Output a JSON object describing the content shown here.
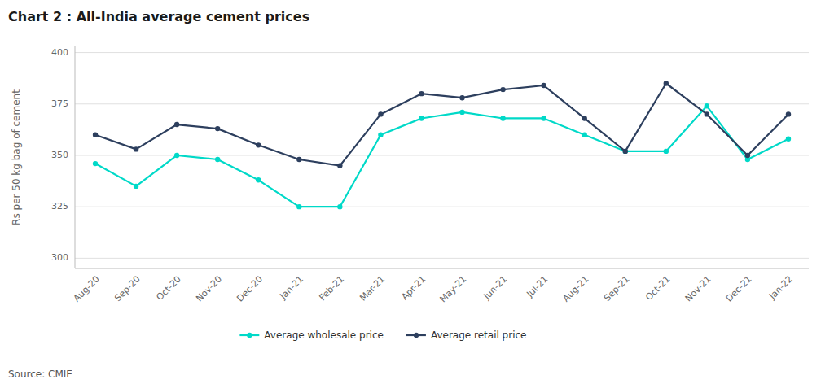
{
  "chart_data": {
    "type": "line",
    "title": "Chart 2 : All-India average cement prices",
    "source": "Source: CMIE",
    "ylabel": "Rs per 50 kg bag of cement",
    "ylim": [
      295,
      403
    ],
    "yticks": [
      300,
      325,
      350,
      375,
      400
    ],
    "grid": true,
    "legend": "bottom",
    "categories": [
      "Aug-20",
      "Sep-20",
      "Oct-20",
      "Nov-20",
      "Dec-20",
      "Jan-21",
      "Feb-21",
      "Mar-21",
      "Apr-21",
      "May-21",
      "Jun-21",
      "Jul-21",
      "Aug-21",
      "Sep-21",
      "Oct-21",
      "Nov-21",
      "Dec-21",
      "Jan-22"
    ],
    "series": [
      {
        "name": "Average wholesale price",
        "color": "#00d9c8",
        "marker": "circle",
        "line_style": "solid",
        "values": [
          346,
          335,
          350,
          348,
          338,
          325,
          325,
          360,
          368,
          371,
          368,
          368,
          360,
          352,
          352,
          374,
          348,
          358
        ]
      },
      {
        "name": "Average retail price",
        "color": "#2d3f5e",
        "marker": "circle",
        "line_style": "solid",
        "values": [
          360,
          353,
          365,
          363,
          355,
          348,
          345,
          370,
          380,
          378,
          382,
          384,
          368,
          352,
          385,
          370,
          350,
          370
        ]
      }
    ]
  }
}
